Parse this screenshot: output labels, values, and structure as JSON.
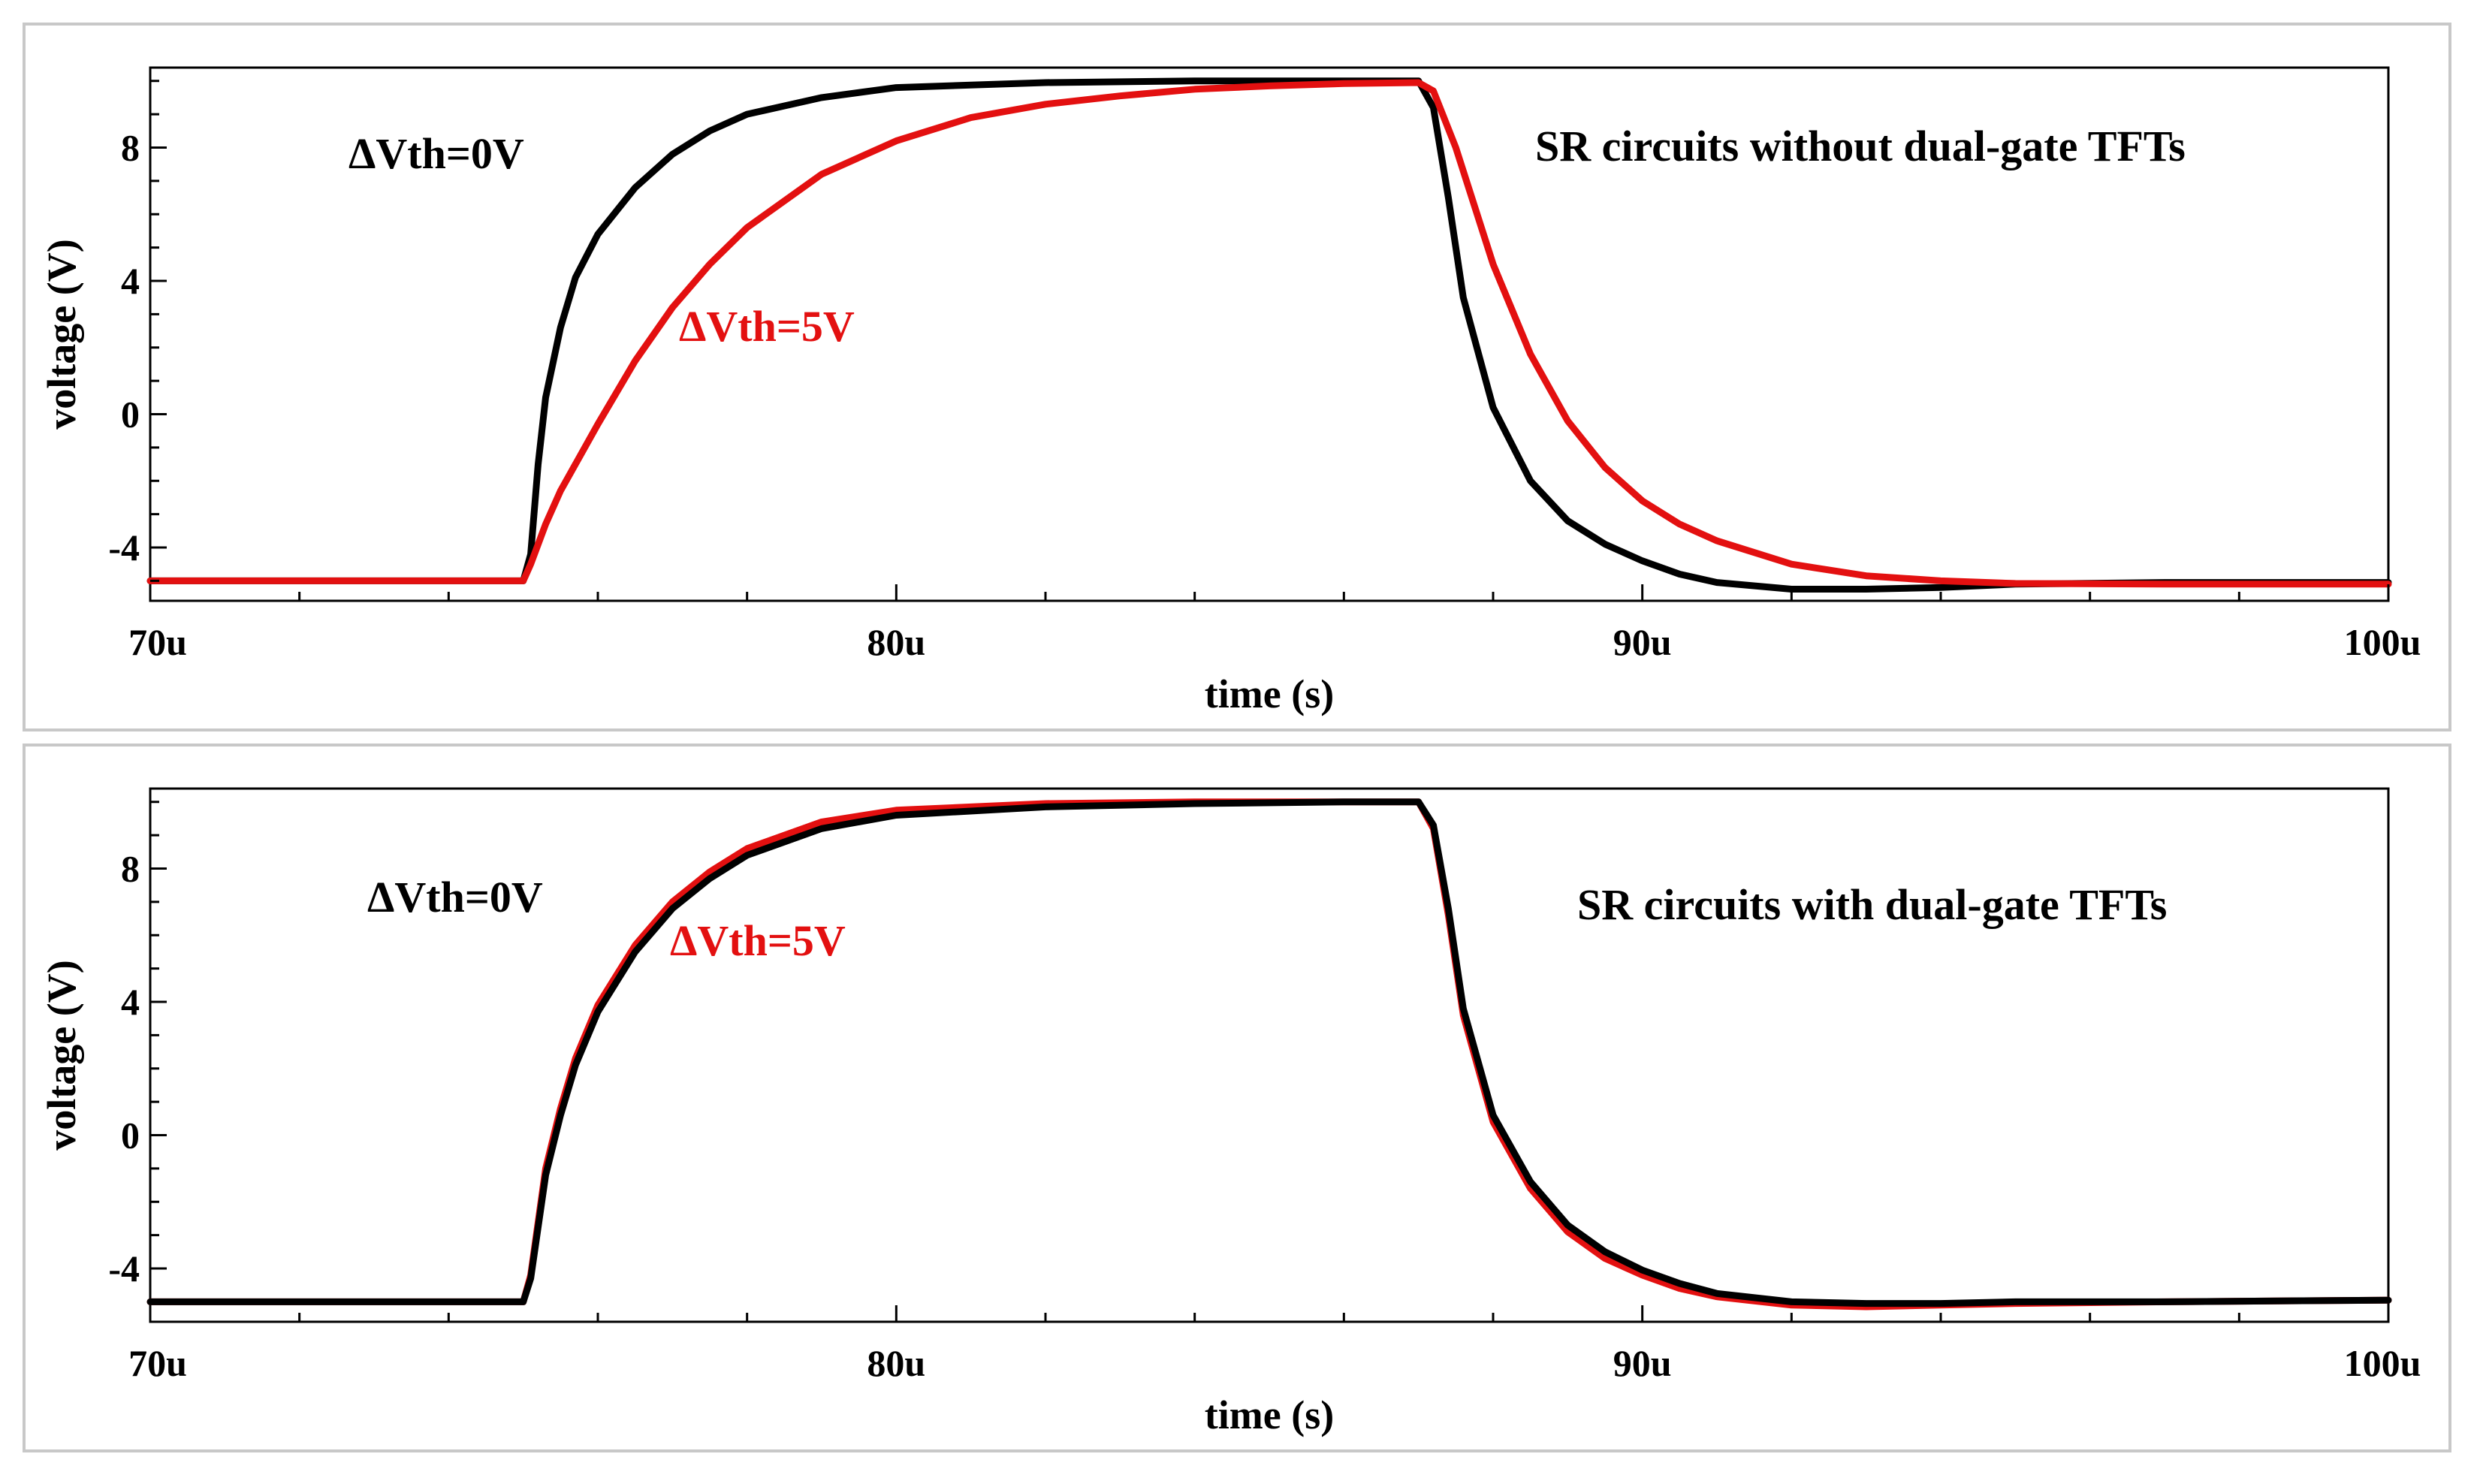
{
  "chart_data": [
    {
      "type": "line",
      "title": "SR circuits without dual-gate TFTs",
      "xlabel": "time (s)",
      "ylabel": "voltage (V)",
      "xlim": [
        70,
        100
      ],
      "ylim": [
        -5.6,
        10.4
      ],
      "x_tick_values": [
        70,
        80,
        90,
        100
      ],
      "x_tick_labels": [
        "70u",
        "80u",
        "90u",
        "100u"
      ],
      "y_tick_values": [
        -4,
        0,
        4,
        8
      ],
      "y_tick_labels": [
        "-4",
        "0",
        "4",
        "8"
      ],
      "grid": false,
      "annotations": [
        {
          "text": "ΔVth=0V",
          "color": "#000000"
        },
        {
          "text": "ΔVth=5V",
          "color": "#e31010"
        }
      ],
      "series": [
        {
          "name": "ΔVth=0V",
          "color": "#000000",
          "x": [
            70,
            75,
            75.1,
            75.2,
            75.3,
            75.5,
            75.7,
            76,
            76.5,
            77,
            77.5,
            78,
            79,
            80,
            82,
            84,
            86,
            87,
            87.2,
            87.4,
            87.6,
            88,
            88.5,
            89,
            89.5,
            90,
            90.5,
            91,
            92,
            93,
            94,
            95,
            97,
            100
          ],
          "values": [
            -5,
            -5,
            -4.2,
            -1.5,
            0.5,
            2.6,
            4.1,
            5.4,
            6.8,
            7.8,
            8.5,
            9.0,
            9.5,
            9.8,
            9.95,
            10,
            10,
            10,
            9.2,
            6.5,
            3.5,
            0.2,
            -2.0,
            -3.2,
            -3.9,
            -4.4,
            -4.8,
            -5.05,
            -5.25,
            -5.25,
            -5.2,
            -5.1,
            -5.05,
            -5.05
          ]
        },
        {
          "name": "ΔVth=5V",
          "color": "#e31010",
          "x": [
            70,
            75,
            75.1,
            75.3,
            75.5,
            76,
            76.5,
            77,
            77.5,
            78,
            79,
            80,
            81,
            82,
            83,
            84,
            85,
            86,
            87,
            87.2,
            87.5,
            88,
            88.5,
            89,
            89.5,
            90,
            90.5,
            91,
            92,
            93,
            94,
            95,
            97,
            100
          ],
          "values": [
            -5,
            -5,
            -4.5,
            -3.3,
            -2.3,
            -0.3,
            1.6,
            3.2,
            4.5,
            5.6,
            7.2,
            8.2,
            8.9,
            9.3,
            9.55,
            9.75,
            9.85,
            9.92,
            9.95,
            9.7,
            8.0,
            4.5,
            1.8,
            -0.2,
            -1.6,
            -2.6,
            -3.3,
            -3.8,
            -4.5,
            -4.85,
            -5.0,
            -5.08,
            -5.1,
            -5.1
          ]
        }
      ]
    },
    {
      "type": "line",
      "title": "SR circuits with dual-gate TFTs",
      "xlabel": "time (s)",
      "ylabel": "voltage (V)",
      "xlim": [
        70,
        100
      ],
      "ylim": [
        -5.6,
        10.4
      ],
      "x_tick_values": [
        70,
        80,
        90,
        100
      ],
      "x_tick_labels": [
        "70u",
        "80u",
        "90u",
        "100u"
      ],
      "y_tick_values": [
        -4,
        0,
        4,
        8
      ],
      "y_tick_labels": [
        "-4",
        "0",
        "4",
        "8"
      ],
      "grid": false,
      "annotations": [
        {
          "text": "ΔVth=0V",
          "color": "#000000"
        },
        {
          "text": "ΔVth=5V",
          "color": "#e31010"
        }
      ],
      "series": [
        {
          "name": "ΔVth=5V",
          "color": "#e31010",
          "x": [
            70,
            75,
            75.1,
            75.3,
            75.5,
            75.7,
            76,
            76.5,
            77,
            77.5,
            78,
            79,
            80,
            82,
            84,
            86,
            87,
            87.2,
            87.4,
            87.6,
            88,
            88.5,
            89,
            89.5,
            90,
            90.5,
            91,
            92,
            93,
            94,
            95,
            97,
            100
          ],
          "values": [
            -5,
            -5,
            -4.2,
            -1.0,
            0.8,
            2.3,
            3.9,
            5.7,
            7.0,
            7.9,
            8.6,
            9.4,
            9.75,
            9.95,
            10,
            10,
            10,
            9.2,
            6.6,
            3.6,
            0.4,
            -1.6,
            -2.9,
            -3.7,
            -4.2,
            -4.6,
            -4.85,
            -5.1,
            -5.15,
            -5.1,
            -5.05,
            -5.0,
            -4.95
          ]
        },
        {
          "name": "ΔVth=0V",
          "color": "#000000",
          "x": [
            70,
            75,
            75.1,
            75.3,
            75.5,
            75.7,
            76,
            76.5,
            77,
            77.5,
            78,
            79,
            80,
            82,
            84,
            86,
            87,
            87.2,
            87.4,
            87.6,
            88,
            88.5,
            89,
            89.5,
            90,
            90.5,
            91,
            92,
            93,
            94,
            95,
            97,
            100
          ],
          "values": [
            -5,
            -5,
            -4.3,
            -1.2,
            0.6,
            2.1,
            3.7,
            5.5,
            6.8,
            7.7,
            8.4,
            9.2,
            9.6,
            9.85,
            9.95,
            10,
            10,
            9.3,
            6.8,
            3.8,
            0.6,
            -1.4,
            -2.7,
            -3.5,
            -4.05,
            -4.45,
            -4.75,
            -5.0,
            -5.05,
            -5.05,
            -5.0,
            -5.0,
            -4.95
          ]
        }
      ]
    }
  ]
}
